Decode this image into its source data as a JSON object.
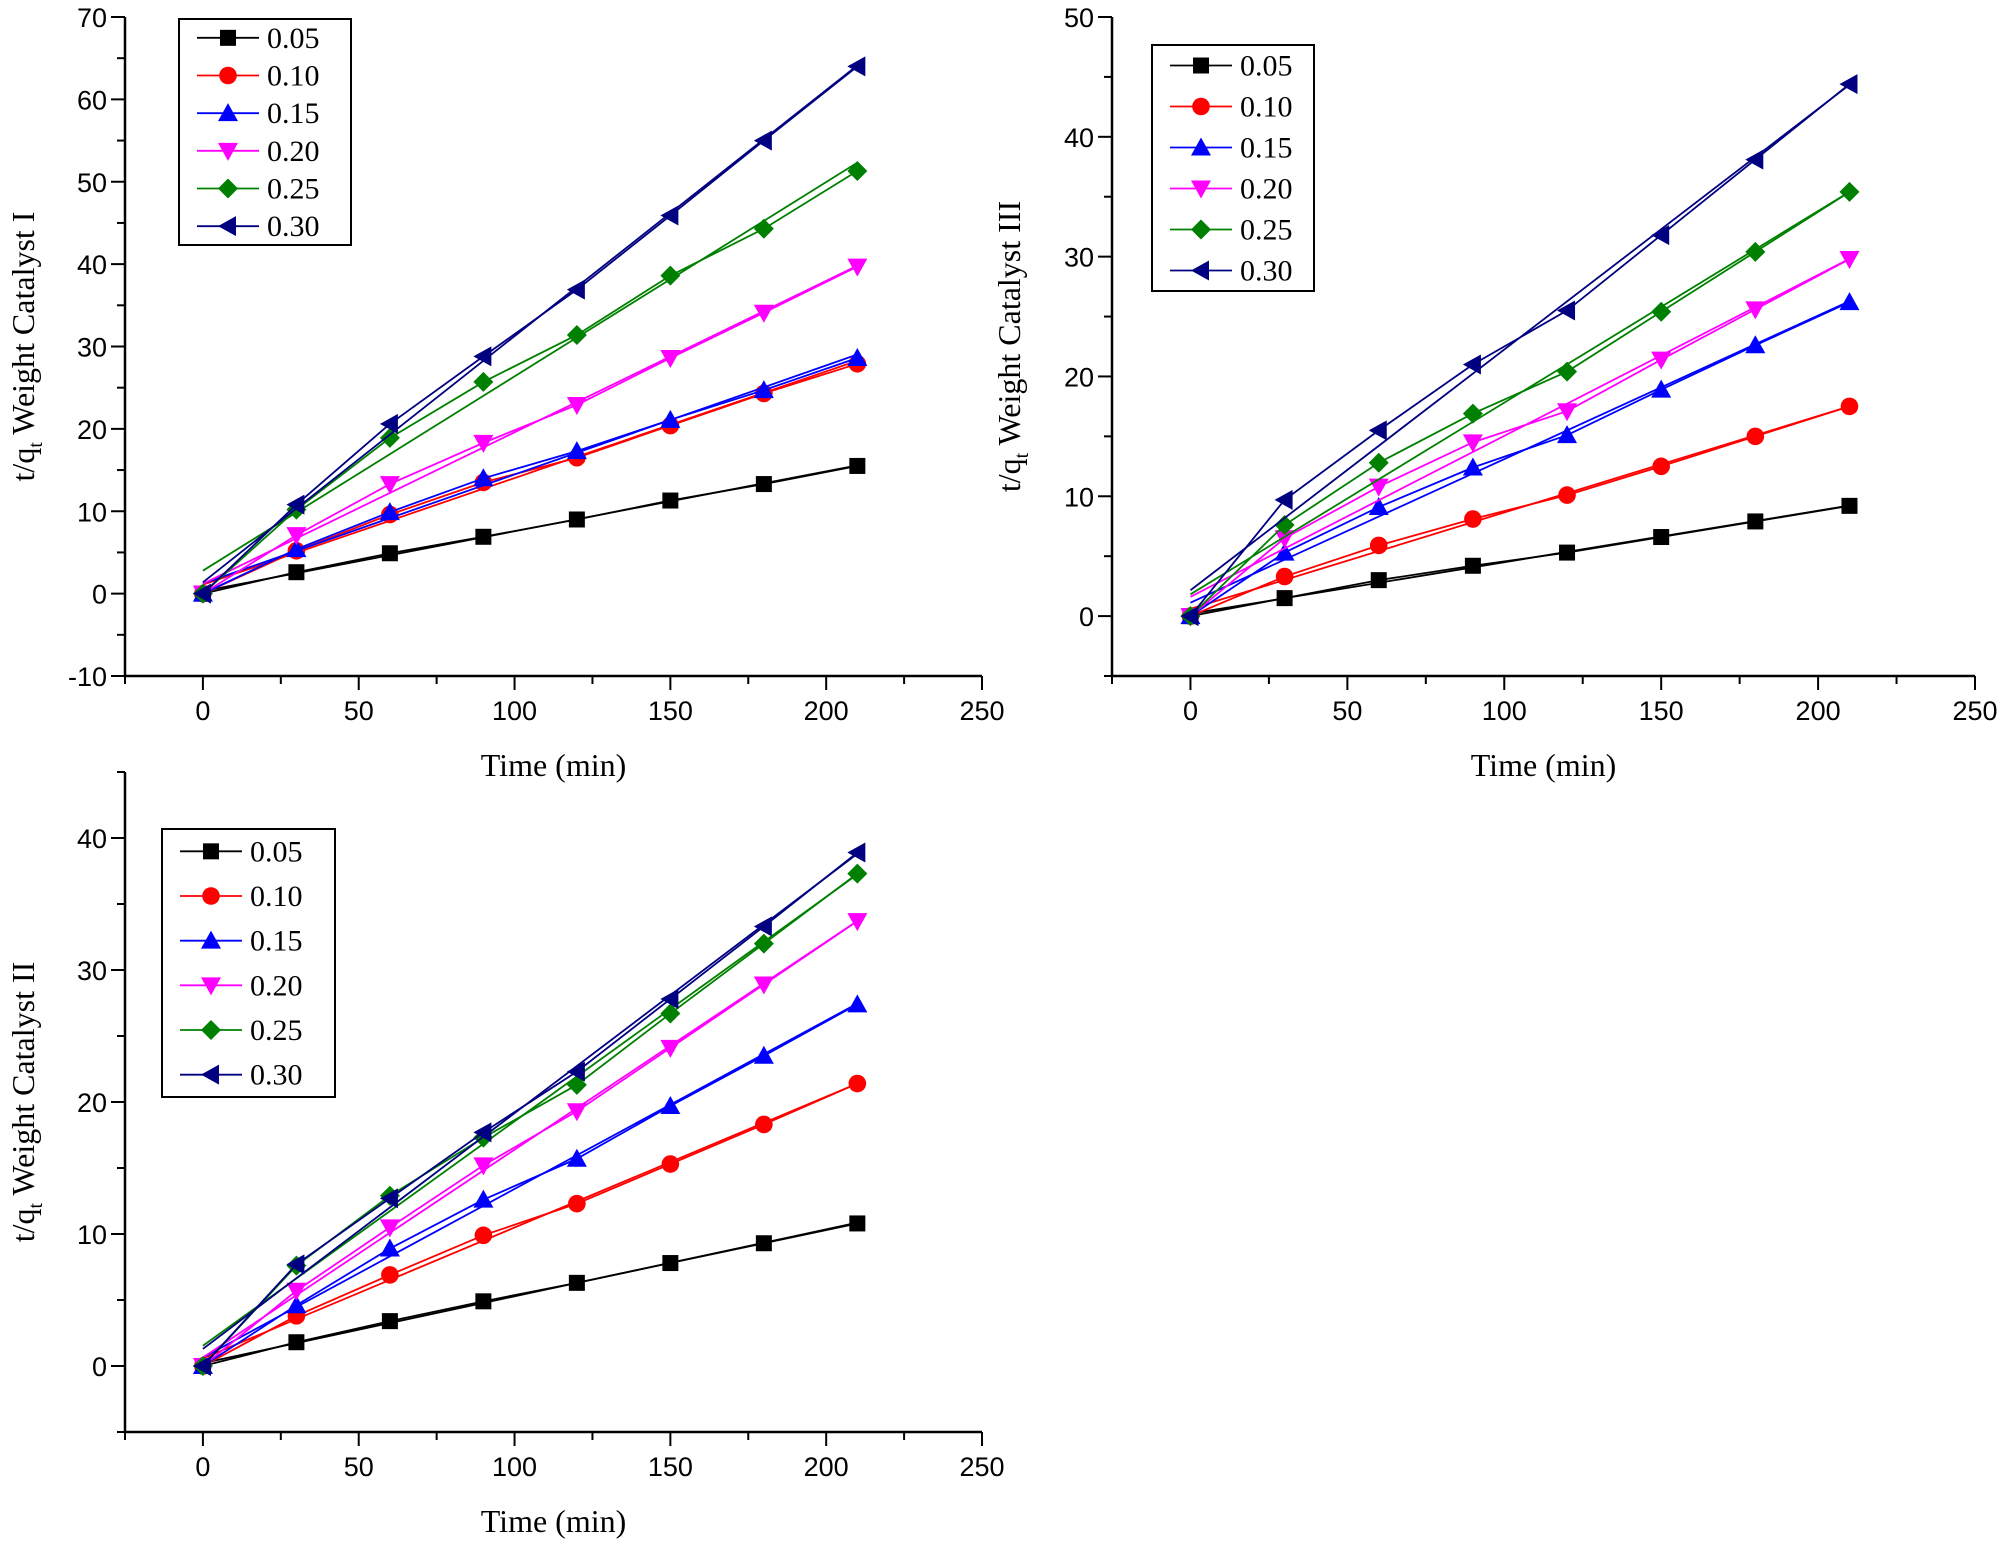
{
  "chart_data": [
    {
      "type": "line",
      "panel": "top-left",
      "xlabel": "Time (min)",
      "ylabel": {
        "prefix": "t/q",
        "sub": "t",
        "suffix": " Weight Catalyst I"
      },
      "xlim": [
        -25,
        250
      ],
      "ylim": [
        -10,
        70
      ],
      "xticks": [
        0,
        50,
        100,
        150,
        200,
        250
      ],
      "yticks": [
        -10,
        0,
        10,
        20,
        30,
        40,
        50,
        60,
        70
      ],
      "legend": "top-left",
      "x": [
        0,
        30,
        60,
        90,
        120,
        150,
        180,
        210
      ],
      "series": [
        {
          "name": "0.05",
          "color": "#000000",
          "marker": "square",
          "values": [
            0,
            2.6,
            4.9,
            6.9,
            9.0,
            11.3,
            13.3,
            15.5
          ]
        },
        {
          "name": "0.10",
          "color": "#ff0000",
          "marker": "circle",
          "values": [
            0,
            5.2,
            9.6,
            13.5,
            16.5,
            20.4,
            24.3,
            27.9
          ]
        },
        {
          "name": "0.15",
          "color": "#0000ff",
          "marker": "triangle-up",
          "values": [
            0,
            5.4,
            9.9,
            14.0,
            17.3,
            21.1,
            24.7,
            28.6
          ]
        },
        {
          "name": "0.20",
          "color": "#ff00ff",
          "marker": "triangle-down",
          "values": [
            0,
            7.1,
            13.3,
            18.3,
            22.9,
            28.6,
            34.1,
            39.7
          ]
        },
        {
          "name": "0.25",
          "color": "#008000",
          "marker": "diamond",
          "values": [
            0,
            10.2,
            18.9,
            25.7,
            31.4,
            38.6,
            44.3,
            51.3
          ]
        },
        {
          "name": "0.30",
          "color": "#000080",
          "marker": "triangle-left",
          "values": [
            0,
            10.8,
            20.6,
            28.8,
            36.9,
            45.9,
            55.0,
            64.0
          ]
        }
      ]
    },
    {
      "type": "line",
      "panel": "top-right",
      "xlabel": "Time (min)",
      "ylabel": {
        "prefix": "t/q",
        "sub": "t",
        "suffix": " Weight Catalyst III"
      },
      "xlim": [
        -25,
        250
      ],
      "ylim": [
        -5,
        50
      ],
      "xticks": [
        0,
        50,
        100,
        150,
        200,
        250
      ],
      "yticks": [
        0,
        10,
        20,
        30,
        40,
        50
      ],
      "legend": "top-left",
      "x": [
        0,
        30,
        60,
        90,
        120,
        150,
        180,
        210
      ],
      "series": [
        {
          "name": "0.05",
          "color": "#000000",
          "marker": "square",
          "values": [
            0,
            1.5,
            3.0,
            4.2,
            5.3,
            6.6,
            7.9,
            9.2
          ]
        },
        {
          "name": "0.10",
          "color": "#ff0000",
          "marker": "circle",
          "values": [
            0,
            3.3,
            5.9,
            8.1,
            10.1,
            12.5,
            15.0,
            17.5
          ]
        },
        {
          "name": "0.15",
          "color": "#0000ff",
          "marker": "triangle-up",
          "values": [
            0,
            5.3,
            9.1,
            12.4,
            15.1,
            18.9,
            22.6,
            26.2
          ]
        },
        {
          "name": "0.20",
          "color": "#ff00ff",
          "marker": "triangle-down",
          "values": [
            0,
            6.5,
            10.8,
            14.5,
            17.1,
            21.4,
            25.6,
            29.8
          ]
        },
        {
          "name": "0.25",
          "color": "#008000",
          "marker": "diamond",
          "values": [
            0,
            7.6,
            12.8,
            16.9,
            20.4,
            25.4,
            30.4,
            35.4
          ]
        },
        {
          "name": "0.30",
          "color": "#000080",
          "marker": "triangle-left",
          "values": [
            0,
            9.7,
            15.5,
            21.0,
            25.5,
            31.8,
            38.1,
            44.4
          ]
        }
      ]
    },
    {
      "type": "line",
      "panel": "bottom-left",
      "xlabel": "Time (min)",
      "ylabel": {
        "prefix": "t/q",
        "sub": "t",
        "suffix": " Weight Catalyst II"
      },
      "xlim": [
        -25,
        250
      ],
      "ylim": [
        -5,
        45
      ],
      "xticks": [
        0,
        50,
        100,
        150,
        200,
        250
      ],
      "yticks": [
        0,
        10,
        20,
        30,
        40
      ],
      "legend": "top-left",
      "x": [
        0,
        30,
        60,
        90,
        120,
        150,
        180,
        210
      ],
      "series": [
        {
          "name": "0.05",
          "color": "#000000",
          "marker": "square",
          "values": [
            0,
            1.8,
            3.4,
            4.9,
            6.3,
            7.8,
            9.3,
            10.8
          ]
        },
        {
          "name": "0.10",
          "color": "#ff0000",
          "marker": "circle",
          "values": [
            0,
            3.8,
            6.9,
            9.9,
            12.3,
            15.3,
            18.3,
            21.4
          ]
        },
        {
          "name": "0.15",
          "color": "#0000ff",
          "marker": "triangle-up",
          "values": [
            0,
            4.6,
            8.9,
            12.6,
            15.7,
            19.7,
            23.5,
            27.4
          ]
        },
        {
          "name": "0.20",
          "color": "#ff00ff",
          "marker": "triangle-down",
          "values": [
            0,
            5.7,
            10.5,
            15.2,
            19.3,
            24.1,
            28.9,
            33.7
          ]
        },
        {
          "name": "0.25",
          "color": "#008000",
          "marker": "diamond",
          "values": [
            0,
            7.6,
            12.9,
            17.3,
            21.3,
            26.7,
            32.0,
            37.3
          ]
        },
        {
          "name": "0.30",
          "color": "#000080",
          "marker": "triangle-left",
          "values": [
            0,
            7.7,
            12.7,
            17.7,
            22.3,
            27.8,
            33.3,
            38.9
          ]
        }
      ]
    }
  ]
}
